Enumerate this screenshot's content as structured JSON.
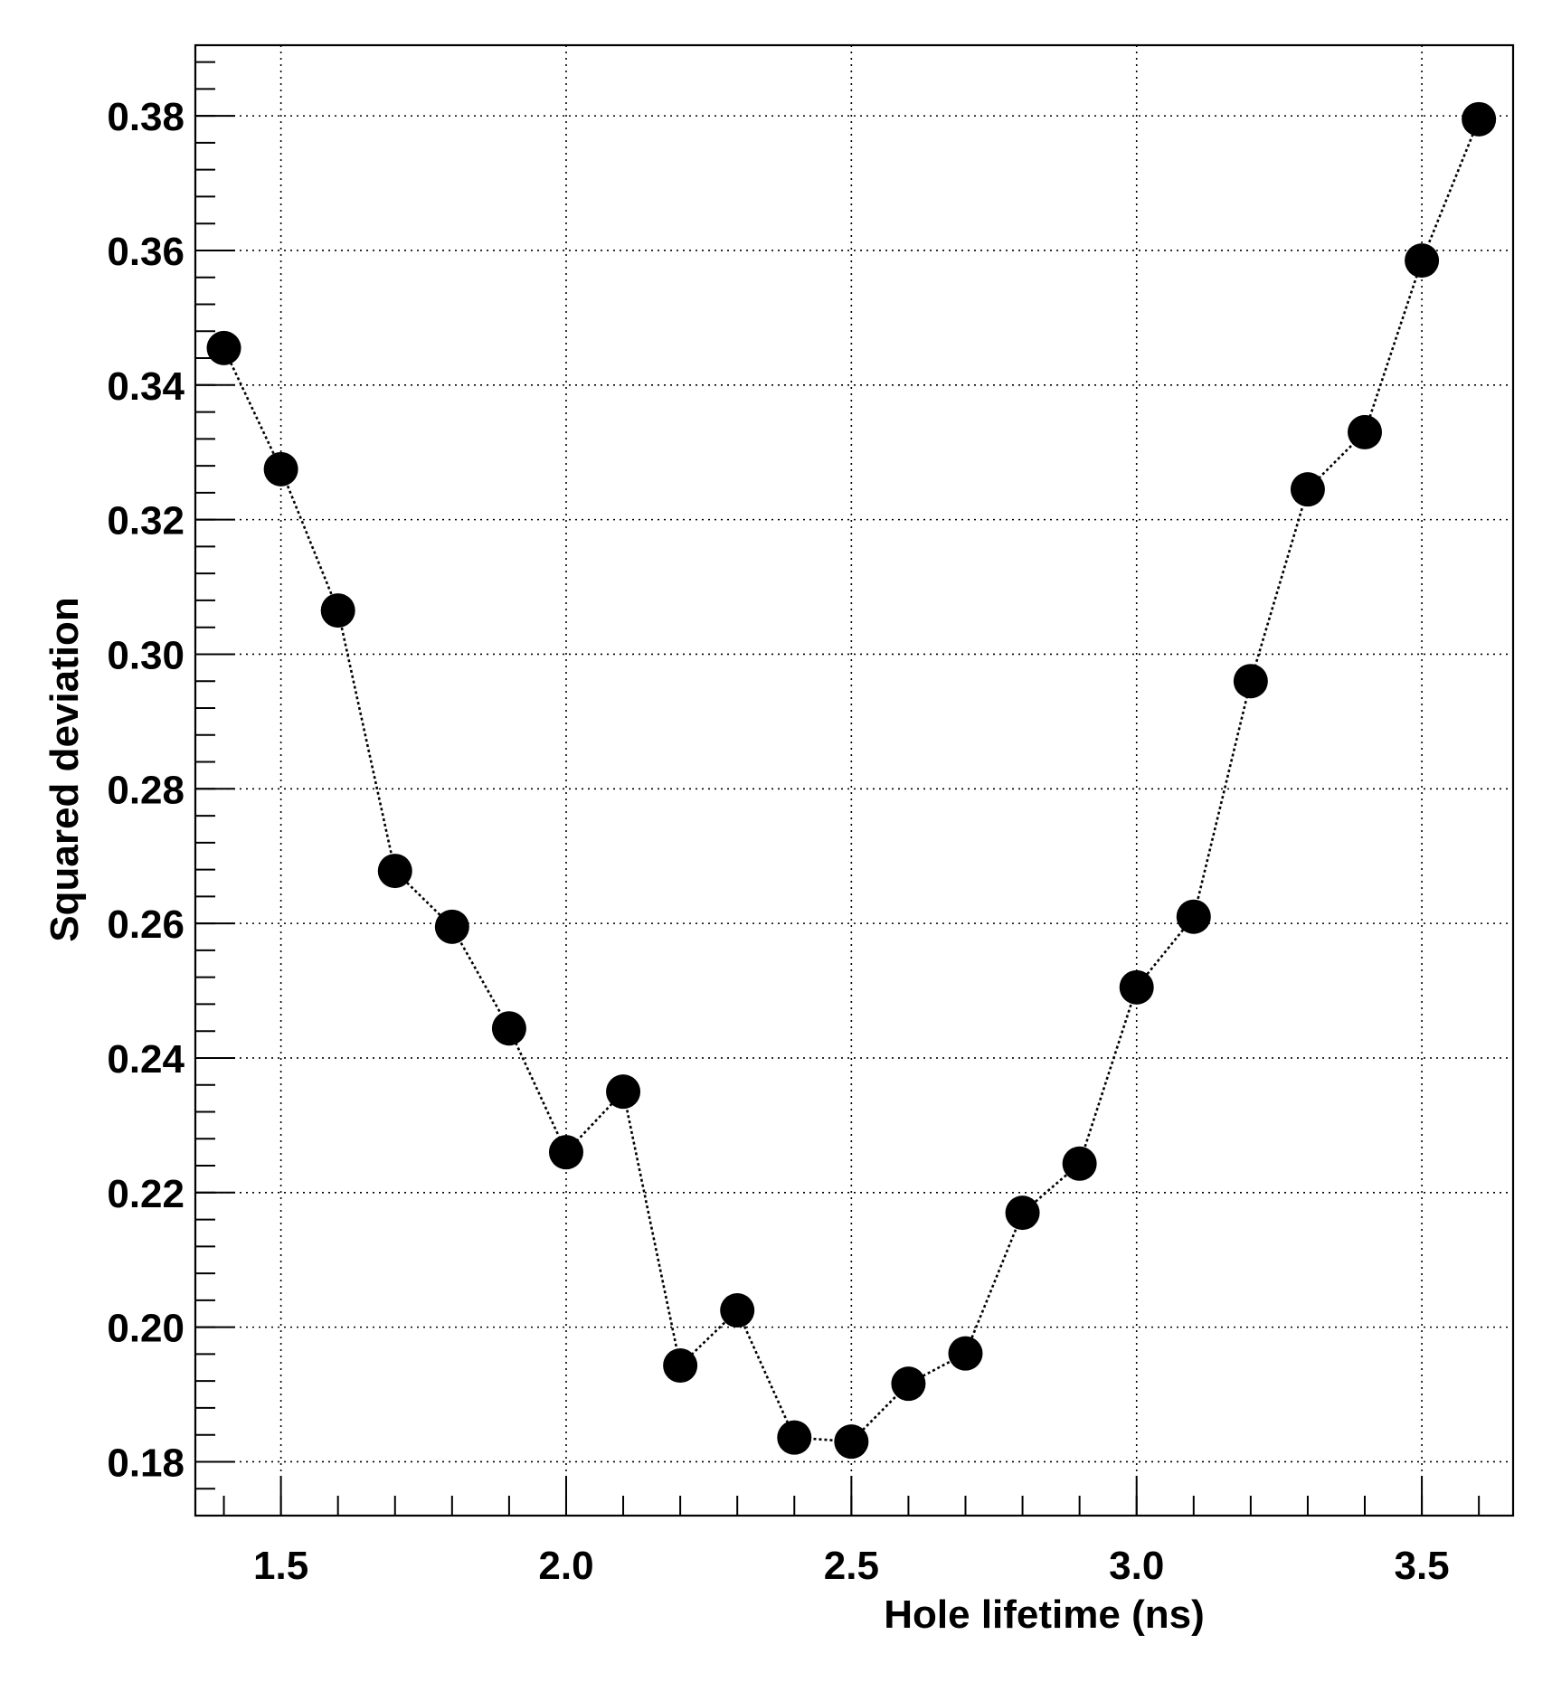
{
  "chart_data": {
    "type": "line",
    "xlabel": "Hole lifetime (ns)",
    "ylabel": "Squared deviation",
    "xlim": [
      1.35,
      3.66
    ],
    "ylim": [
      0.172,
      0.3905
    ],
    "x_major_ticks": [
      1.5,
      2.0,
      2.5,
      3.0,
      3.5
    ],
    "x_tick_labels": [
      "1.5",
      "2.0",
      "2.5",
      "3.0",
      "3.5"
    ],
    "x_minor_step": 0.1,
    "y_major_ticks": [
      0.18,
      0.2,
      0.22,
      0.24,
      0.26,
      0.28,
      0.3,
      0.32,
      0.34,
      0.36,
      0.38
    ],
    "y_tick_labels": [
      "0.18",
      "0.20",
      "0.22",
      "0.24",
      "0.26",
      "0.28",
      "0.30",
      "0.32",
      "0.34",
      "0.36",
      "0.38"
    ],
    "y_minor_step": 0.004,
    "grid": true,
    "marker": "filled-circle",
    "line_style": "dotted",
    "series": [
      {
        "x": [
          1.4,
          1.5,
          1.6,
          1.7,
          1.8,
          1.9,
          2.0,
          2.1,
          2.2,
          2.3,
          2.4,
          2.5,
          2.6,
          2.7,
          2.8,
          2.9,
          3.0,
          3.1,
          3.2,
          3.3,
          3.4,
          3.5,
          3.6
        ],
        "y": [
          0.3455,
          0.3275,
          0.3065,
          0.2678,
          0.2595,
          0.2444,
          0.226,
          0.235,
          0.1943,
          0.2025,
          0.1836,
          0.183,
          0.1916,
          0.1961,
          0.217,
          0.2243,
          0.2505,
          0.261,
          0.296,
          0.3245,
          0.333,
          0.3585,
          0.3795
        ]
      }
    ]
  }
}
